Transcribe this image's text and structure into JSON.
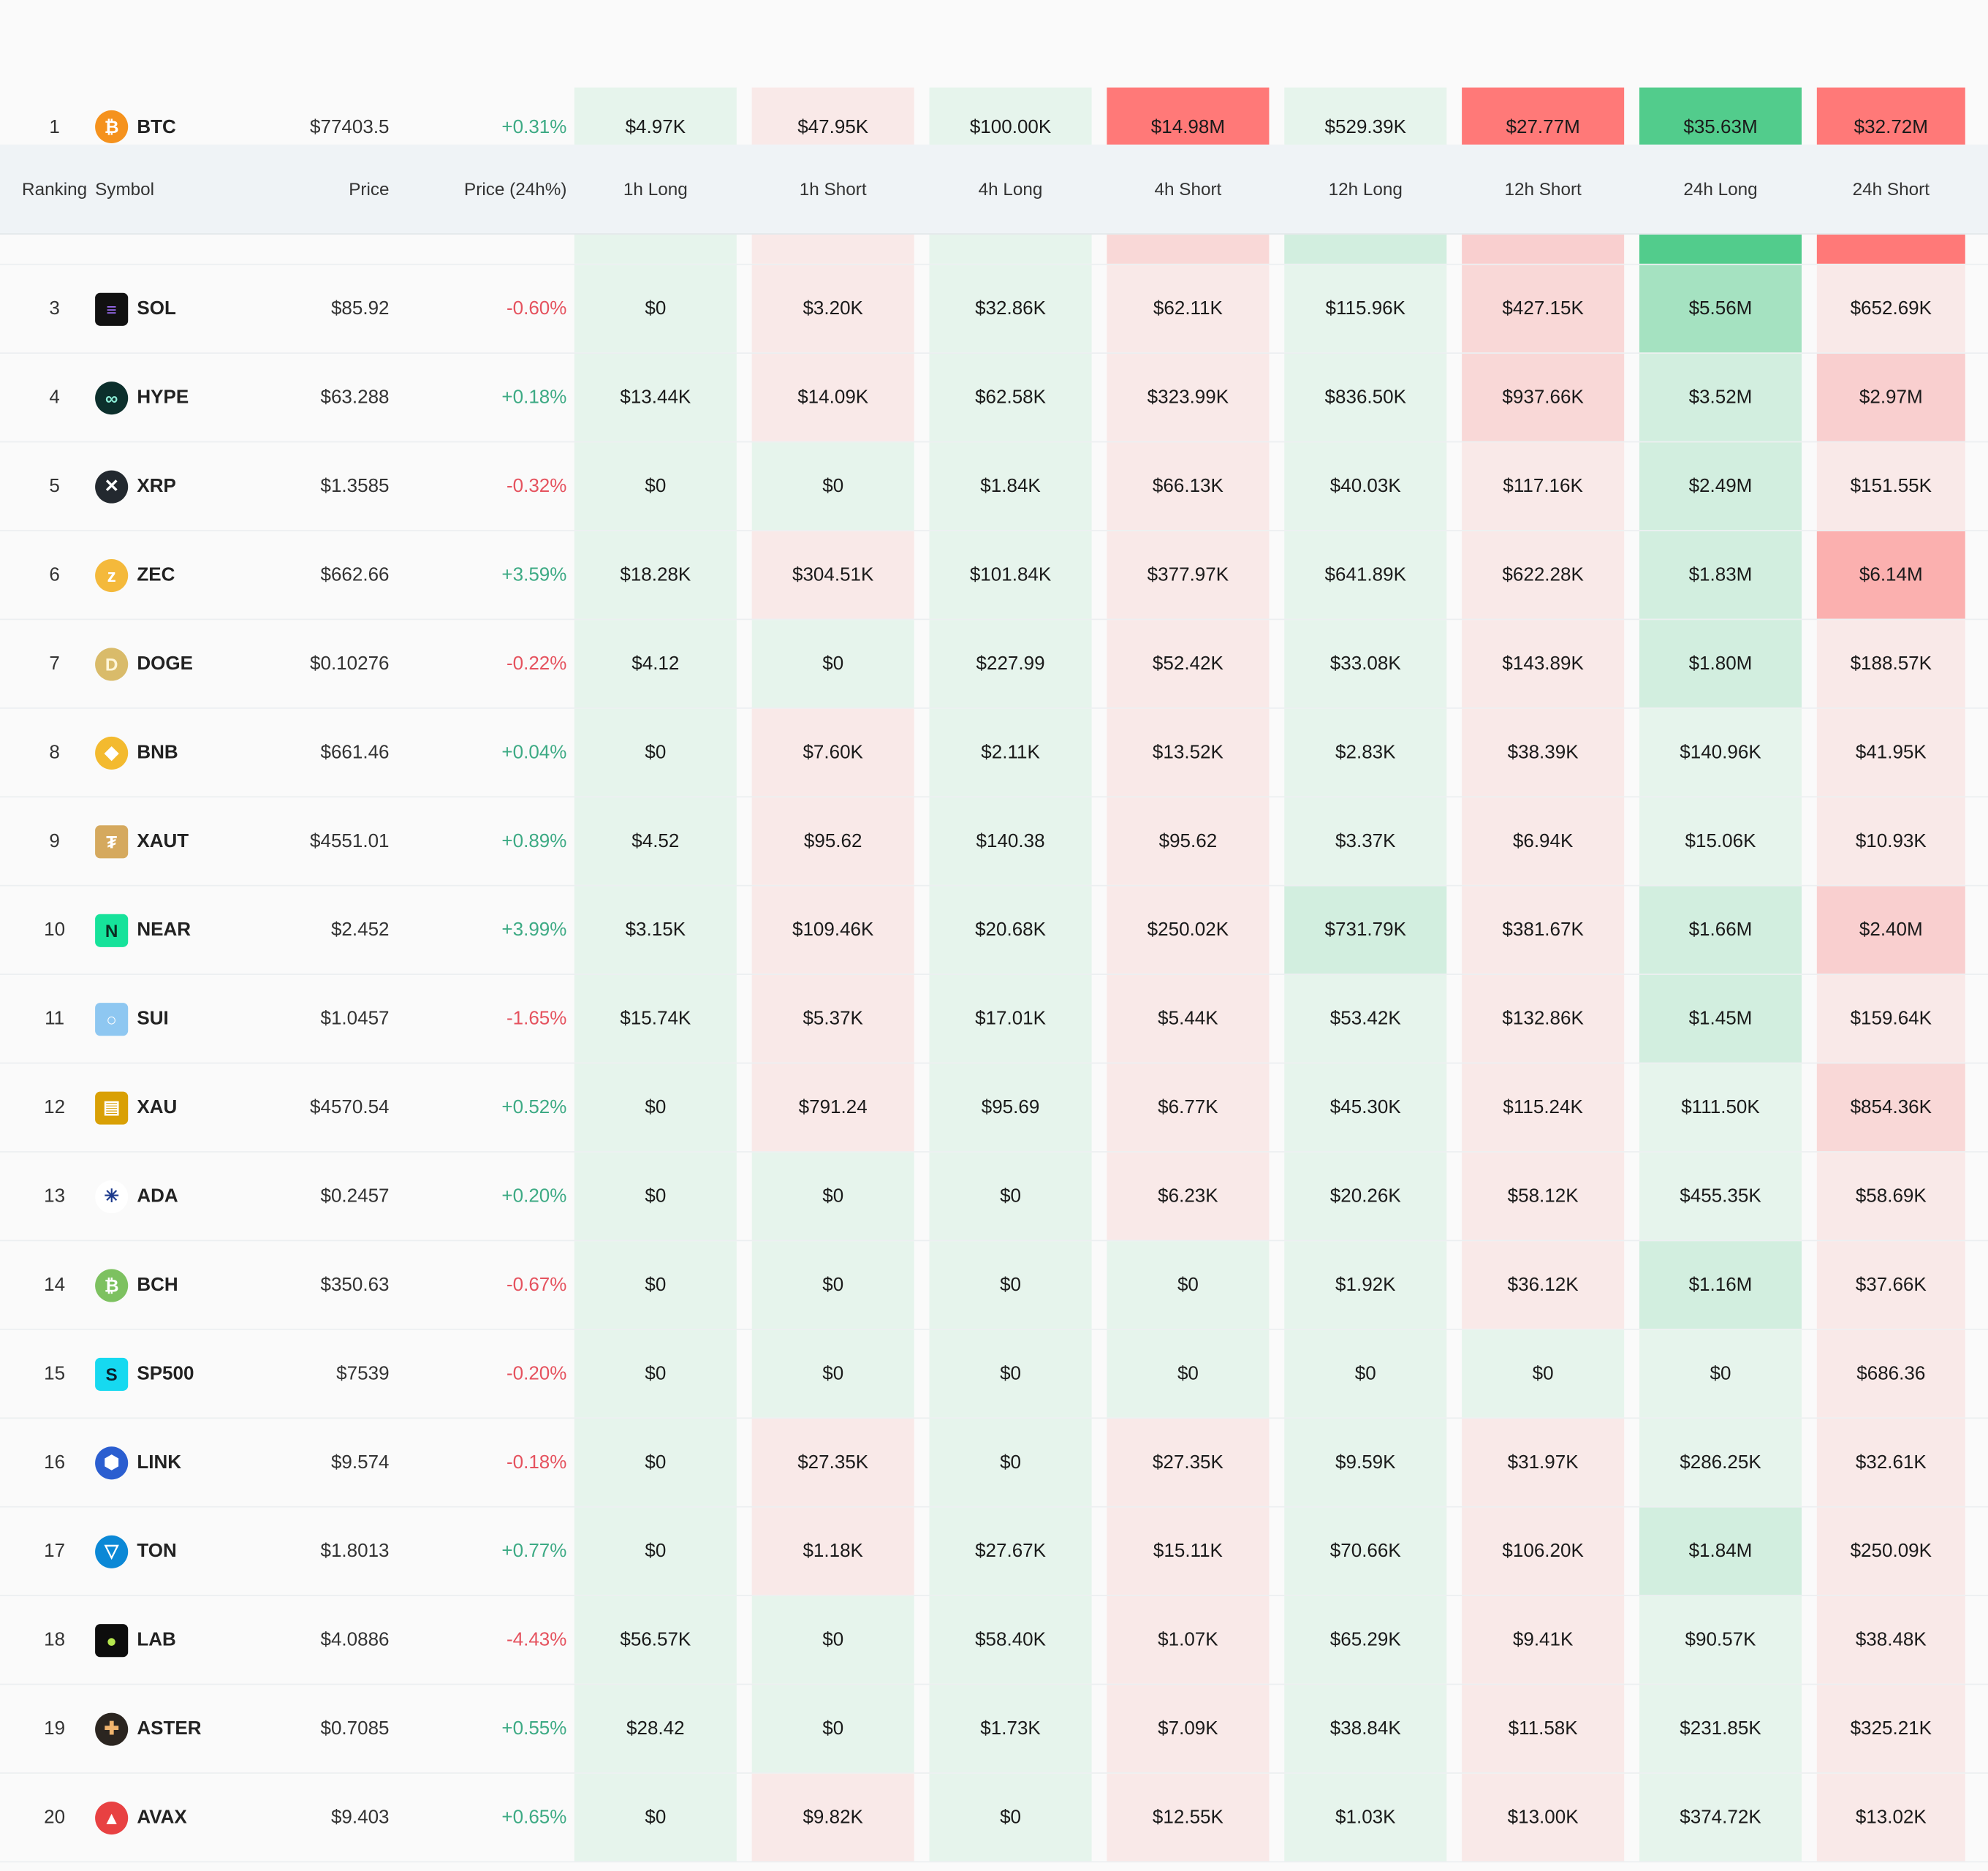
{
  "colors": {
    "long_light": "#e6f4ec",
    "short_light": "#fae9e8",
    "long_strong": "#52cc8c",
    "short_strong": "#ff7a78",
    "header_bg": "#eff3f6",
    "up": "#3daa84",
    "down": "#e5525e"
  },
  "header": {
    "ranking": "Ranking",
    "symbol": "Symbol",
    "price": "Price",
    "change": "Price (24h%)",
    "cols": [
      "1h Long",
      "1h Short",
      "4h Long",
      "4h Short",
      "12h Long",
      "12h Short",
      "24h Long",
      "24h Short"
    ]
  },
  "rows": [
    {
      "rank": "1",
      "symbol": "BTC",
      "icon": "bitcoin-icon",
      "price": "$77403.5",
      "change": "+0.31%",
      "values": [
        "$4.97K",
        "$47.95K",
        "$100.00K",
        "$14.98M",
        "$529.39K",
        "$27.77M",
        "$35.63M",
        "$32.72M"
      ]
    },
    {
      "rank": "3",
      "symbol": "SOL",
      "icon": "solana-icon",
      "price": "$85.92",
      "change": "-0.60%",
      "values": [
        "$0",
        "$3.20K",
        "$32.86K",
        "$62.11K",
        "$115.96K",
        "$427.15K",
        "$5.56M",
        "$652.69K"
      ]
    },
    {
      "rank": "4",
      "symbol": "HYPE",
      "icon": "hyperliquid-icon",
      "price": "$63.288",
      "change": "+0.18%",
      "values": [
        "$13.44K",
        "$14.09K",
        "$62.58K",
        "$323.99K",
        "$836.50K",
        "$937.66K",
        "$3.52M",
        "$2.97M"
      ]
    },
    {
      "rank": "5",
      "symbol": "XRP",
      "icon": "xrp-icon",
      "price": "$1.3585",
      "change": "-0.32%",
      "values": [
        "$0",
        "$0",
        "$1.84K",
        "$66.13K",
        "$40.03K",
        "$117.16K",
        "$2.49M",
        "$151.55K"
      ]
    },
    {
      "rank": "6",
      "symbol": "ZEC",
      "icon": "zcash-icon",
      "price": "$662.66",
      "change": "+3.59%",
      "values": [
        "$18.28K",
        "$304.51K",
        "$101.84K",
        "$377.97K",
        "$641.89K",
        "$622.28K",
        "$1.83M",
        "$6.14M"
      ]
    },
    {
      "rank": "7",
      "symbol": "DOGE",
      "icon": "dogecoin-icon",
      "price": "$0.10276",
      "change": "-0.22%",
      "values": [
        "$4.12",
        "$0",
        "$227.99",
        "$52.42K",
        "$33.08K",
        "$143.89K",
        "$1.80M",
        "$188.57K"
      ]
    },
    {
      "rank": "8",
      "symbol": "BNB",
      "icon": "bnb-icon",
      "price": "$661.46",
      "change": "+0.04%",
      "values": [
        "$0",
        "$7.60K",
        "$2.11K",
        "$13.52K",
        "$2.83K",
        "$38.39K",
        "$140.96K",
        "$41.95K"
      ]
    },
    {
      "rank": "9",
      "symbol": "XAUT",
      "icon": "tether-gold-icon",
      "price": "$4551.01",
      "change": "+0.89%",
      "values": [
        "$4.52",
        "$95.62",
        "$140.38",
        "$95.62",
        "$3.37K",
        "$6.94K",
        "$15.06K",
        "$10.93K"
      ]
    },
    {
      "rank": "10",
      "symbol": "NEAR",
      "icon": "near-icon",
      "price": "$2.452",
      "change": "+3.99%",
      "values": [
        "$3.15K",
        "$109.46K",
        "$20.68K",
        "$250.02K",
        "$731.79K",
        "$381.67K",
        "$1.66M",
        "$2.40M"
      ]
    },
    {
      "rank": "11",
      "symbol": "SUI",
      "icon": "sui-icon",
      "price": "$1.0457",
      "change": "-1.65%",
      "values": [
        "$15.74K",
        "$5.37K",
        "$17.01K",
        "$5.44K",
        "$53.42K",
        "$132.86K",
        "$1.45M",
        "$159.64K"
      ]
    },
    {
      "rank": "12",
      "symbol": "XAU",
      "icon": "gold-icon",
      "price": "$4570.54",
      "change": "+0.52%",
      "values": [
        "$0",
        "$791.24",
        "$95.69",
        "$6.77K",
        "$45.30K",
        "$115.24K",
        "$111.50K",
        "$854.36K"
      ]
    },
    {
      "rank": "13",
      "symbol": "ADA",
      "icon": "cardano-icon",
      "price": "$0.2457",
      "change": "+0.20%",
      "values": [
        "$0",
        "$0",
        "$0",
        "$6.23K",
        "$20.26K",
        "$58.12K",
        "$455.35K",
        "$58.69K"
      ]
    },
    {
      "rank": "14",
      "symbol": "BCH",
      "icon": "bitcoin-cash-icon",
      "price": "$350.63",
      "change": "-0.67%",
      "values": [
        "$0",
        "$0",
        "$0",
        "$0",
        "$1.92K",
        "$36.12K",
        "$1.16M",
        "$37.66K"
      ]
    },
    {
      "rank": "15",
      "symbol": "SP500",
      "icon": "sp500-icon",
      "price": "$7539",
      "change": "-0.20%",
      "values": [
        "$0",
        "$0",
        "$0",
        "$0",
        "$0",
        "$0",
        "$0",
        "$686.36"
      ]
    },
    {
      "rank": "16",
      "symbol": "LINK",
      "icon": "chainlink-icon",
      "price": "$9.574",
      "change": "-0.18%",
      "values": [
        "$0",
        "$27.35K",
        "$0",
        "$27.35K",
        "$9.59K",
        "$31.97K",
        "$286.25K",
        "$32.61K"
      ]
    },
    {
      "rank": "17",
      "symbol": "TON",
      "icon": "toncoin-icon",
      "price": "$1.8013",
      "change": "+0.77%",
      "values": [
        "$0",
        "$1.18K",
        "$27.67K",
        "$15.11K",
        "$70.66K",
        "$106.20K",
        "$1.84M",
        "$250.09K"
      ]
    },
    {
      "rank": "18",
      "symbol": "LAB",
      "icon": "lab-icon",
      "price": "$4.0886",
      "change": "-4.43%",
      "values": [
        "$56.57K",
        "$0",
        "$58.40K",
        "$1.07K",
        "$65.29K",
        "$9.41K",
        "$90.57K",
        "$38.48K"
      ]
    },
    {
      "rank": "19",
      "symbol": "ASTER",
      "icon": "aster-icon",
      "price": "$0.7085",
      "change": "+0.55%",
      "values": [
        "$28.42",
        "$0",
        "$1.73K",
        "$7.09K",
        "$38.84K",
        "$11.58K",
        "$231.85K",
        "$325.21K"
      ]
    },
    {
      "rank": "20",
      "symbol": "AVAX",
      "icon": "avalanche-icon",
      "price": "$9.403",
      "change": "+0.65%",
      "values": [
        "$0",
        "$9.82K",
        "$0",
        "$12.55K",
        "$1.03K",
        "$13.00K",
        "$374.72K",
        "$13.02K"
      ]
    }
  ]
}
